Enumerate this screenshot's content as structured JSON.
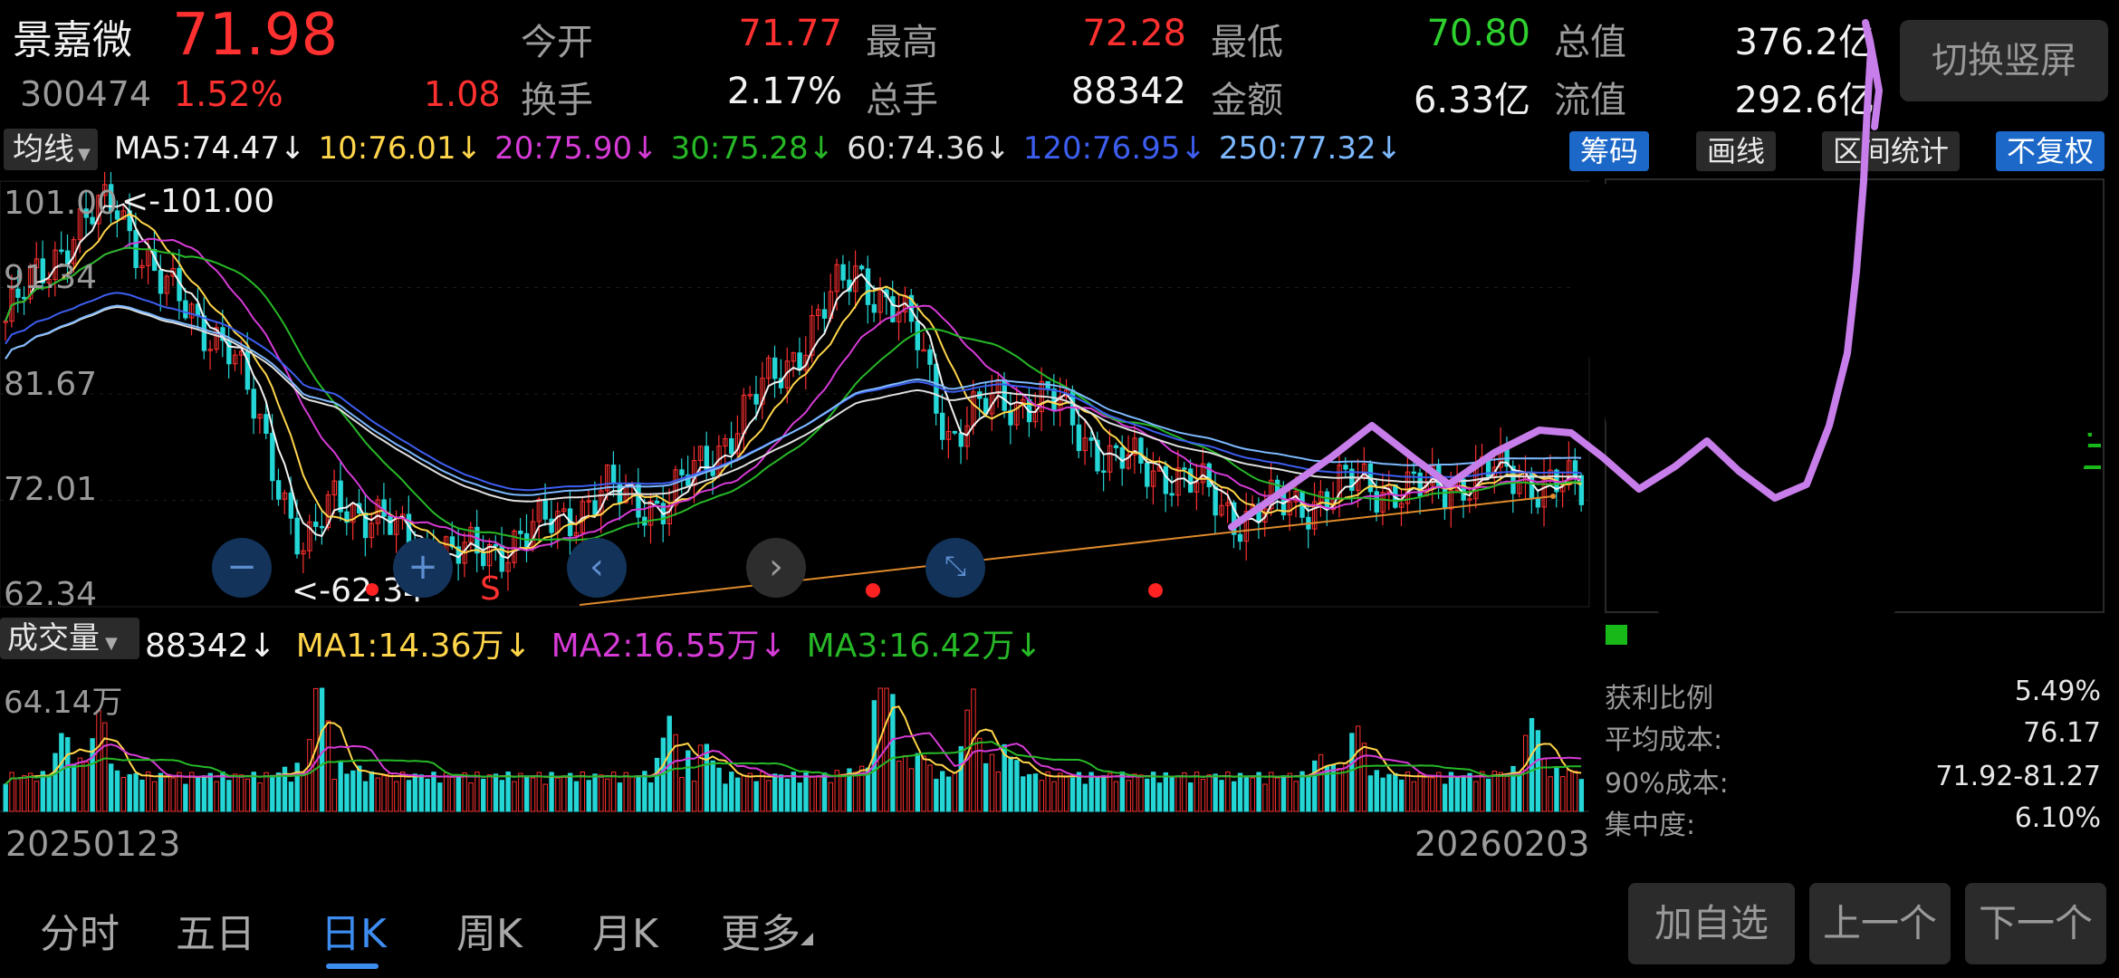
{
  "quote": {
    "name": "景嘉微",
    "price": "71.98",
    "code": "300474",
    "change_pct": "1.52%",
    "change": "1.08",
    "stats": [
      {
        "label": "今开",
        "value": "71.77",
        "color": "red"
      },
      {
        "label": "最高",
        "value": "72.28",
        "color": "red"
      },
      {
        "label": "最低",
        "value": "70.80",
        "color": "green"
      },
      {
        "label": "总值",
        "value": "376.2亿",
        "color": "white"
      },
      {
        "label": "换手",
        "value": "2.17%",
        "color": "white"
      },
      {
        "label": "总手",
        "value": "88342",
        "color": "white"
      },
      {
        "label": "金额",
        "value": "6.33亿",
        "color": "white"
      },
      {
        "label": "流值",
        "value": "292.6亿",
        "color": "white"
      }
    ],
    "switch_button": "切换竖屏"
  },
  "ma_bar": {
    "selector": "均线",
    "items": [
      {
        "text": "MA5:74.47",
        "color": "#f2f2f2"
      },
      {
        "text": "10:76.01",
        "color": "#ffd54a"
      },
      {
        "text": "20:75.90",
        "color": "#d63bd6"
      },
      {
        "text": "30:75.28",
        "color": "#27b827"
      },
      {
        "text": "60:74.36",
        "color": "#e0e0e0"
      },
      {
        "text": "120:76.95",
        "color": "#3d5ef0"
      },
      {
        "text": "250:77.32",
        "color": "#7db9ff"
      }
    ],
    "arrow": "↓",
    "buttons": {
      "chips": "筹码",
      "draw": "画线",
      "range_stats": "区间统计",
      "no_adjust": "不复权"
    }
  },
  "kline": {
    "y_labels": [
      "101.00",
      "91.34",
      "81.67",
      "72.01",
      "62.34"
    ],
    "max_marker": "<-101.00",
    "min_marker": "<-62.34",
    "s_marker": "S"
  },
  "volume_bar": {
    "selector": "成交量",
    "volume": "88342",
    "ma1": "MA1:14.36万",
    "ma2": "MA2:16.55万",
    "ma3": "MA3:16.42万",
    "arrow": "↓",
    "max_label": "64.14万",
    "date_start": "20250123",
    "date_end": "20260203"
  },
  "chips": {
    "rows": [
      {
        "label": "获利比例",
        "value": "5.49%"
      },
      {
        "label": "平均成本:",
        "value": "76.17"
      },
      {
        "label": "90%成本:",
        "value": "71.92-81.27"
      },
      {
        "label": "集中度:",
        "value": "6.10%"
      }
    ]
  },
  "tabs": [
    "分时",
    "五日",
    "日K",
    "周K",
    "月K",
    "更多"
  ],
  "active_tab": "日K",
  "bottom_buttons": {
    "add": "加自选",
    "prev": "上一个",
    "next": "下一个"
  },
  "colors": {
    "up": "#ff3030",
    "down": "#2ecf2e",
    "accent": "#3d8cf0",
    "scribble": "#c77dea"
  }
}
